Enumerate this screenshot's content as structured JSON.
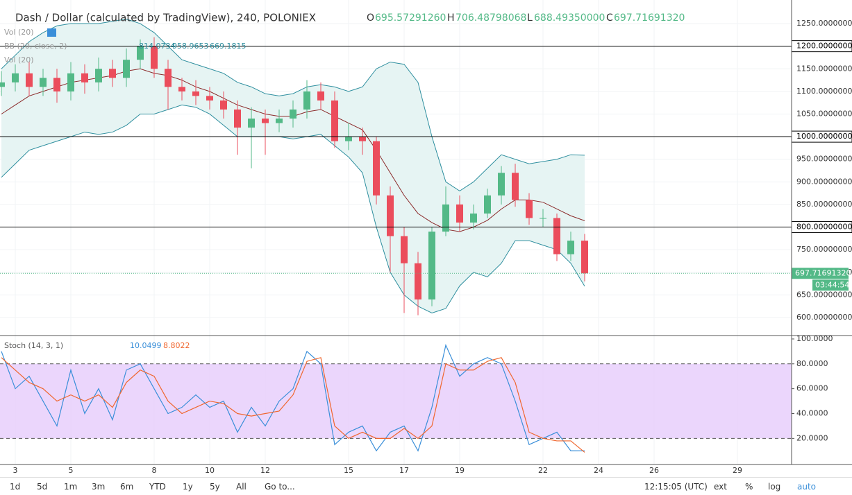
{
  "header": {
    "title": "Dash / Dollar (calculated by TradingView), 240, POLONIEX",
    "o_label": "O",
    "o": "695.57291260",
    "h_label": "H",
    "h": "706.48798068",
    "l_label": "L",
    "l": "688.49350000",
    "c_label": "C",
    "c": "697.71691320",
    "vol1": "Vol (20)",
    "bb": "BB (20, close, 2)",
    "bb_mid": "814.0734",
    "bb_up": "958.9653",
    "bb_low": "669.1815",
    "vol2": "Vol (20)"
  },
  "chart_data": [
    {
      "type": "candlestick",
      "up_color": "#53b987",
      "down_color": "#eb4d5c",
      "x": [
        2.5,
        3,
        3.5,
        4,
        4.5,
        5,
        5.5,
        6,
        6.5,
        7,
        7.5,
        8,
        8.5,
        9,
        9.5,
        10,
        10.5,
        11,
        11.5,
        12,
        12.5,
        13,
        13.5,
        14,
        14.5,
        15,
        15.5,
        16,
        16.5,
        17,
        17.5,
        18,
        18.5,
        19,
        19.5,
        20,
        20.5,
        21,
        21.5,
        22,
        22.5,
        23,
        23.5
      ],
      "open": [
        1110,
        1120,
        1140,
        1110,
        1130,
        1100,
        1140,
        1120,
        1150,
        1130,
        1170,
        1200,
        1150,
        1110,
        1100,
        1090,
        1080,
        1060,
        1020,
        1040,
        1030,
        1040,
        1060,
        1100,
        1080,
        990,
        1000,
        990,
        870,
        780,
        720,
        640,
        790,
        850,
        810,
        830,
        870,
        920,
        860,
        820,
        820,
        740,
        770
      ],
      "high": [
        1145,
        1160,
        1165,
        1150,
        1150,
        1165,
        1160,
        1175,
        1170,
        1195,
        1215,
        1220,
        1170,
        1130,
        1125,
        1110,
        1100,
        1080,
        1065,
        1060,
        1060,
        1080,
        1125,
        1120,
        1100,
        1030,
        1020,
        1000,
        890,
        800,
        745,
        800,
        890,
        870,
        850,
        885,
        935,
        940,
        875,
        840,
        830,
        790,
        785
      ],
      "low": [
        1090,
        1100,
        1090,
        1090,
        1075,
        1080,
        1095,
        1100,
        1110,
        1110,
        1150,
        1130,
        1060,
        1080,
        1070,
        1060,
        1040,
        960,
        930,
        960,
        1010,
        1020,
        1040,
        1060,
        975,
        970,
        960,
        850,
        700,
        610,
        605,
        625,
        780,
        790,
        795,
        820,
        850,
        845,
        805,
        800,
        725,
        725,
        680
      ],
      "close": [
        1120,
        1140,
        1110,
        1130,
        1100,
        1140,
        1120,
        1150,
        1130,
        1170,
        1200,
        1150,
        1110,
        1100,
        1090,
        1080,
        1060,
        1020,
        1040,
        1030,
        1040,
        1060,
        1100,
        1080,
        990,
        1000,
        990,
        870,
        780,
        720,
        640,
        790,
        850,
        810,
        830,
        870,
        920,
        860,
        820,
        820,
        740,
        770,
        697.7169132
      ],
      "bands": [
        {
          "color": "#2f8f9f",
          "values": [
            1150,
            1180,
            1210,
            1230,
            1245,
            1250,
            1250,
            1250,
            1255,
            1260,
            1250,
            1230,
            1200,
            1170,
            1160,
            1150,
            1140,
            1120,
            1110,
            1095,
            1090,
            1095,
            1110,
            1115,
            1110,
            1100,
            1110,
            1150,
            1165,
            1160,
            1120,
            1000,
            900,
            880,
            900,
            930,
            960,
            950,
            940,
            945,
            950,
            960,
            958.9653
          ]
        },
        {
          "color": "#8b2a2a",
          "values": [
            1050,
            1070,
            1090,
            1100,
            1110,
            1120,
            1125,
            1130,
            1135,
            1145,
            1150,
            1140,
            1135,
            1125,
            1110,
            1100,
            1085,
            1070,
            1060,
            1050,
            1045,
            1045,
            1055,
            1060,
            1045,
            1030,
            1015,
            970,
            920,
            870,
            830,
            810,
            795,
            790,
            800,
            815,
            840,
            860,
            860,
            855,
            840,
            825,
            814.0734
          ]
        },
        {
          "color": "#2f8f9f",
          "values": [
            910,
            940,
            970,
            980,
            990,
            1000,
            1010,
            1005,
            1010,
            1025,
            1050,
            1050,
            1060,
            1070,
            1065,
            1050,
            1025,
            1000,
            1000,
            1000,
            1000,
            995,
            1000,
            1005,
            980,
            955,
            920,
            800,
            700,
            650,
            625,
            610,
            620,
            670,
            700,
            690,
            720,
            770,
            770,
            760,
            750,
            720,
            669.1815
          ]
        }
      ],
      "band_fill": "#e6f4f3",
      "xlim": [
        2.45,
        30.95
      ],
      "ylim": [
        561.7,
        1294.5
      ],
      "xticks": [
        3,
        5,
        8,
        10,
        12,
        15,
        17,
        19,
        22,
        24,
        26,
        29
      ],
      "yticks": [
        {
          "value": 600,
          "label": "600.00000000"
        },
        {
          "value": 650,
          "label": "650.00000000"
        },
        {
          "value": 700,
          "label": "700.00000000"
        },
        {
          "value": 750,
          "label": "750.00000000"
        },
        {
          "value": 800,
          "label": "800.00000000"
        },
        {
          "value": 850,
          "label": "850.00000000"
        },
        {
          "value": 900,
          "label": "900.00000000"
        },
        {
          "value": 950,
          "label": "950.00000000"
        },
        {
          "value": 1000,
          "label": "1000.00000000"
        },
        {
          "value": 1050,
          "label": "1050.00000000"
        },
        {
          "value": 1100,
          "label": "1100.00000000"
        },
        {
          "value": 1150,
          "label": "1150.00000000"
        },
        {
          "value": 1200,
          "label": "1200.00000000"
        },
        {
          "value": 1250,
          "label": "1250.00000000"
        }
      ],
      "levels": [
        {
          "value": 1200,
          "label": "1200.00000000"
        },
        {
          "value": 1000,
          "label": "1000.00000000"
        },
        {
          "value": 800,
          "label": "800.00000000"
        }
      ],
      "last_price": {
        "value": 697.7169132,
        "label": "697.71691320"
      },
      "countdown": "03:44:54"
    },
    {
      "type": "line",
      "title": "Stoch (14, 3, 1)",
      "ylim": [
        -1,
        102.2
      ],
      "xlim": [
        2.45,
        30.95
      ],
      "band": [
        20,
        80
      ],
      "band_color": "#e6ccfb",
      "yticks": [
        {
          "value": 20,
          "label": "20.0000"
        },
        {
          "value": 40,
          "label": "40.0000"
        },
        {
          "value": 60,
          "label": "60.0000"
        },
        {
          "value": 80,
          "label": "80.0000"
        },
        {
          "value": 100,
          "label": "100.0000"
        }
      ],
      "x": [
        2.5,
        3,
        3.5,
        4,
        4.5,
        5,
        5.5,
        6,
        6.5,
        7,
        7.5,
        8,
        8.5,
        9,
        9.5,
        10,
        10.5,
        11,
        11.5,
        12,
        12.5,
        13,
        13.5,
        14,
        14.5,
        15,
        15.5,
        16,
        16.5,
        17,
        17.5,
        18,
        18.5,
        19,
        19.5,
        20,
        20.5,
        21,
        21.5,
        22,
        22.5,
        23,
        23.5
      ],
      "series": [
        {
          "color": "#3a8fd9",
          "value_labels": "10.0499",
          "values": [
            90,
            60,
            70,
            50,
            30,
            75,
            40,
            60,
            35,
            75,
            80,
            60,
            40,
            45,
            55,
            45,
            50,
            25,
            45,
            30,
            50,
            60,
            90,
            80,
            15,
            25,
            30,
            10,
            25,
            30,
            10,
            45,
            95,
            70,
            80,
            85,
            80,
            50,
            15,
            20,
            25,
            10,
            10.0499
          ]
        },
        {
          "color": "#f0672f",
          "value_labels": "8.8022",
          "values": [
            85,
            75,
            65,
            60,
            50,
            55,
            50,
            55,
            45,
            65,
            75,
            70,
            50,
            40,
            45,
            50,
            48,
            40,
            38,
            40,
            42,
            55,
            82,
            85,
            30,
            20,
            25,
            20,
            20,
            28,
            20,
            30,
            80,
            75,
            75,
            82,
            85,
            65,
            25,
            20,
            18,
            18,
            8.8022
          ]
        }
      ]
    }
  ],
  "toolbar": {
    "ranges": [
      "1d",
      "5d",
      "1m",
      "3m",
      "6m",
      "YTD",
      "1y",
      "5y",
      "All"
    ],
    "goto": "Go to...",
    "clock": "12:15:05 (UTC)",
    "ext": "ext",
    "pct": "%",
    "log": "log",
    "auto": "auto"
  }
}
